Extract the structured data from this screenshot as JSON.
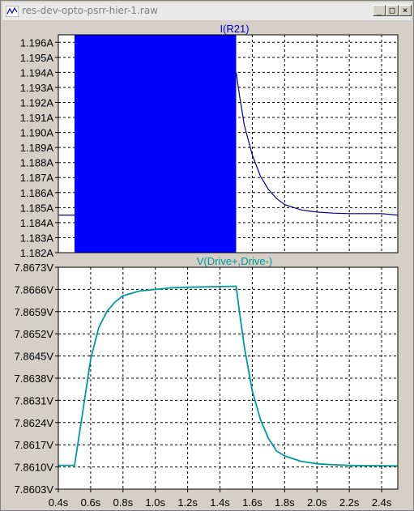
{
  "window": {
    "title": "res-dev-opto-psrr-hier-1.raw",
    "minimize_glyph": "_",
    "maximize_glyph": "□",
    "close_glyph": "×",
    "background": "#d4d0c8"
  },
  "chart_data": [
    {
      "type": "line",
      "title": "I(R21)",
      "title_color": "#0000cc",
      "trace_color": "#000080",
      "fill_color": "#0000ff",
      "ylim": [
        1.182,
        1.1965
      ],
      "xlim": [
        0.4,
        2.5
      ],
      "y_ticks": [
        "1.196A",
        "1.195A",
        "1.194A",
        "1.193A",
        "1.192A",
        "1.191A",
        "1.190A",
        "1.189A",
        "1.188A",
        "1.187A",
        "1.186A",
        "1.185A",
        "1.184A",
        "1.183A",
        "1.182A"
      ],
      "y_tick_values": [
        1.196,
        1.195,
        1.194,
        1.193,
        1.192,
        1.191,
        1.19,
        1.189,
        1.188,
        1.187,
        1.186,
        1.185,
        1.184,
        1.183,
        1.182
      ],
      "oscillation_band": {
        "x": [
          0.5,
          1.5
        ],
        "y": [
          1.182,
          1.1965
        ]
      },
      "x": [
        0.4,
        0.5,
        1.5,
        1.52,
        1.55,
        1.6,
        1.65,
        1.7,
        1.75,
        1.8,
        1.9,
        2.0,
        2.1,
        2.2,
        2.3,
        2.4,
        2.5
      ],
      "y": [
        1.1845,
        1.1845,
        1.194,
        1.1925,
        1.1905,
        1.1885,
        1.1871,
        1.1862,
        1.1856,
        1.1852,
        1.18485,
        1.1847,
        1.18463,
        1.1846,
        1.1846,
        1.1846,
        1.1845
      ]
    },
    {
      "type": "line",
      "title": "V(Drive+,Drive-)",
      "title_color": "#009999",
      "trace_color": "#009999",
      "ylim": [
        7.8603,
        7.8673
      ],
      "xlim": [
        0.4,
        2.5
      ],
      "y_ticks": [
        "7.8673V",
        "7.8666V",
        "7.8659V",
        "7.8652V",
        "7.8645V",
        "7.8638V",
        "7.8631V",
        "7.8624V",
        "7.8617V",
        "7.8610V",
        "7.8603V"
      ],
      "y_tick_values": [
        7.8673,
        7.8666,
        7.8659,
        7.8652,
        7.8645,
        7.8638,
        7.8631,
        7.8624,
        7.8617,
        7.861,
        7.8603
      ],
      "x_ticks": [
        "0.4s",
        "0.6s",
        "0.8s",
        "1.0s",
        "1.2s",
        "1.4s",
        "1.6s",
        "1.8s",
        "2.0s",
        "2.2s",
        "2.4s"
      ],
      "x_tick_values": [
        0.4,
        0.6,
        0.8,
        1.0,
        1.2,
        1.4,
        1.6,
        1.8,
        2.0,
        2.2,
        2.4
      ],
      "x": [
        0.4,
        0.5,
        0.55,
        0.6,
        0.65,
        0.7,
        0.75,
        0.8,
        0.9,
        1.0,
        1.1,
        1.2,
        1.3,
        1.4,
        1.5,
        1.52,
        1.55,
        1.6,
        1.65,
        1.7,
        1.75,
        1.8,
        1.9,
        2.0,
        2.1,
        2.2,
        2.3,
        2.4,
        2.5
      ],
      "y": [
        7.86105,
        7.86105,
        7.8627,
        7.8644,
        7.8654,
        7.8659,
        7.8662,
        7.8664,
        7.86655,
        7.8666,
        7.86665,
        7.86667,
        7.86668,
        7.86669,
        7.8667,
        7.8659,
        7.8648,
        7.8634,
        7.8625,
        7.8619,
        7.8615,
        7.86135,
        7.86118,
        7.8611,
        7.86107,
        7.86105,
        7.86104,
        7.86104,
        7.86103
      ]
    }
  ]
}
